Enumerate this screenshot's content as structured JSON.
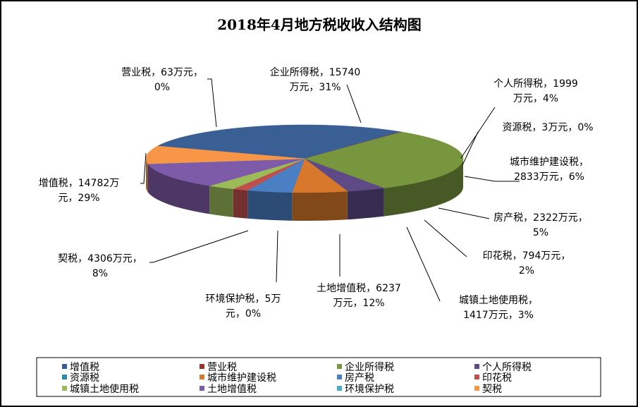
{
  "chart_data": {
    "type": "pie",
    "title": "2018年4月地方税收收入结构图",
    "unit": "万元",
    "slices": [
      {
        "name": "增值税",
        "value": 14782,
        "percent": "29%",
        "color": "#3a5f95",
        "label_lines": [
          "增值税，14782万",
          "元，29%"
        ]
      },
      {
        "name": "营业税",
        "value": 63,
        "percent": "0%",
        "color": "#9b3431",
        "label_lines": [
          "营业税，63万元，",
          "0%"
        ]
      },
      {
        "name": "企业所得税",
        "value": 15740,
        "percent": "31%",
        "color": "#77963e",
        "label_lines": [
          "企业所得税，15740",
          "万元，31%"
        ]
      },
      {
        "name": "个人所得税",
        "value": 1999,
        "percent": "4%",
        "color": "#5e4a85",
        "label_lines": [
          "个人所得税，1999",
          "万元，4%"
        ]
      },
      {
        "name": "资源税",
        "value": 3,
        "percent": "0%",
        "color": "#2f8aa7",
        "label_lines": [
          "资源税，3万元，0%"
        ]
      },
      {
        "name": "城市维护建设税",
        "value": 2833,
        "percent": "6%",
        "color": "#d7782c",
        "label_lines": [
          "城市维护建设税，",
          "2833万元，6%"
        ]
      },
      {
        "name": "房产税",
        "value": 2322,
        "percent": "5%",
        "color": "#4a7fc3",
        "label_lines": [
          "房产税，2322万元，",
          "5%"
        ]
      },
      {
        "name": "印花税",
        "value": 794,
        "percent": "2%",
        "color": "#c0504d",
        "label_lines": [
          "印花税，794万元，",
          "2%"
        ]
      },
      {
        "name": "城镇土地使用税",
        "value": 1417,
        "percent": "3%",
        "color": "#9bbb59",
        "label_lines": [
          "城镇土地使用税，",
          "1417万元，3%"
        ]
      },
      {
        "name": "土地增值税",
        "value": 6237,
        "percent": "12%",
        "color": "#7e5ba8",
        "label_lines": [
          "土地增值税，6237",
          "万元，12%"
        ]
      },
      {
        "name": "环境保护税",
        "value": 5,
        "percent": "0%",
        "color": "#4bacc6",
        "label_lines": [
          "环境保护税，5万",
          "元，0%"
        ]
      },
      {
        "name": "契税",
        "value": 4306,
        "percent": "8%",
        "color": "#f79646",
        "label_lines": [
          "契税，4306万元，",
          "8%"
        ]
      }
    ],
    "legend_placement": "bottom"
  }
}
